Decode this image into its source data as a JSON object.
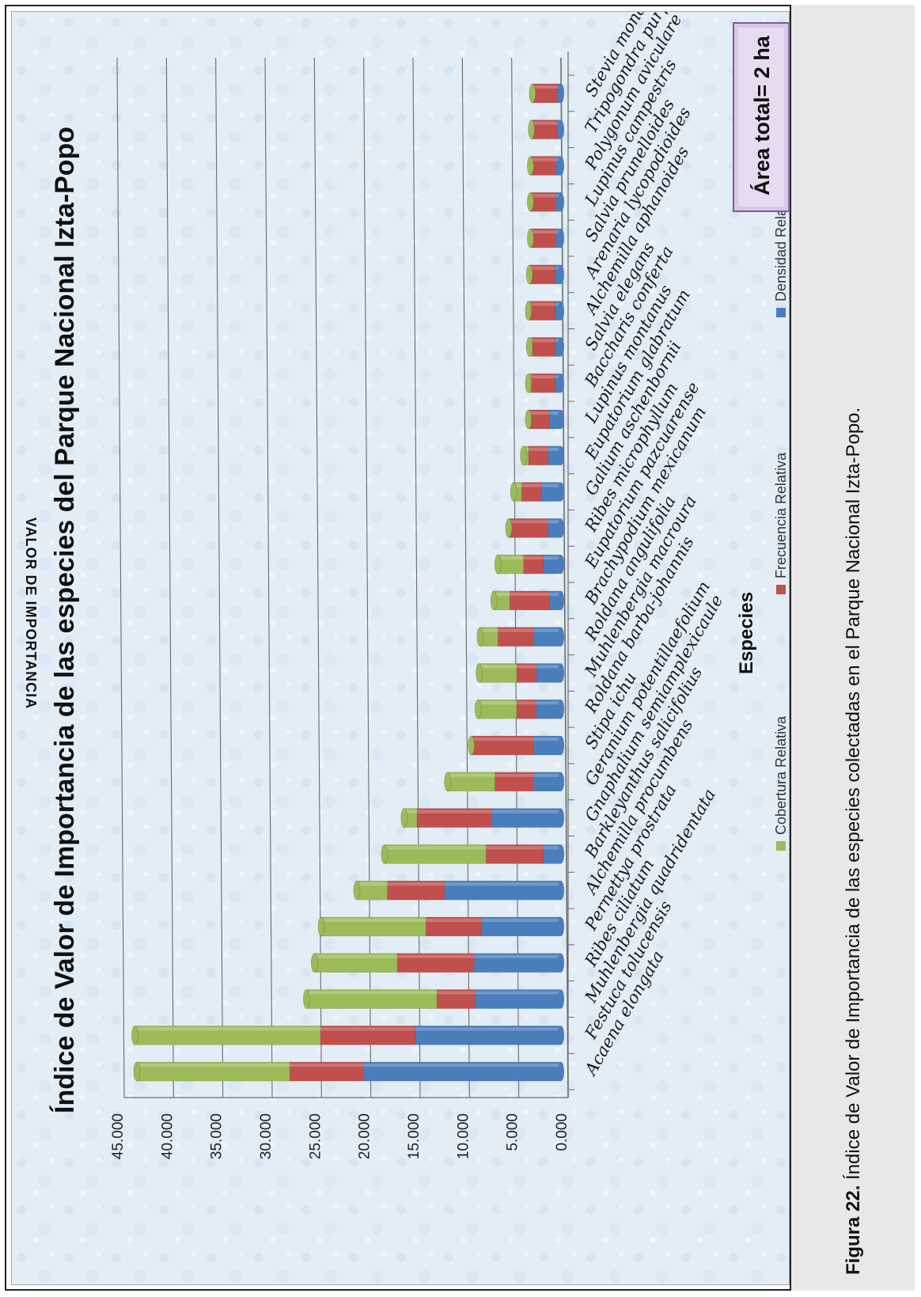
{
  "figure": {
    "caption_label": "Figura 22.",
    "caption_text": " Índice de Valor de Importancia de las especies colectadas  en el Parque Nacional Izta-Popo."
  },
  "area_box": {
    "label": "Área total= 2 ha"
  },
  "colors": {
    "densidad": "#4a7ebb",
    "frecuencia": "#c0504d",
    "cobertura": "#9bbb59",
    "background": "#e3edf6",
    "gridline": "#6b6b6b"
  },
  "chart_data": {
    "type": "bar",
    "stacked": true,
    "orientation": "vertical (page rotated 90°)",
    "title": "Índice de Valor de Importancia de las  especies del Parque Nacional Izta-Popo",
    "xlabel": "Especies",
    "ylabel": "VALOR DE  IMPORTANCIA",
    "ylim": [
      0,
      45
    ],
    "ytick_labels": [
      "0.000",
      "5.000",
      "10.000",
      "15.000",
      "20.000",
      "25.000",
      "30.000",
      "35.000",
      "40.000",
      "45.000"
    ],
    "grid": true,
    "legend_position": "bottom",
    "categories": [
      "Acaena elongata",
      "Festuca tolucensis",
      "Muhlenbergia quadridentata",
      "Ribes ciliatum",
      "Pernettya prostrata",
      "Alchemilla procumbens",
      "Barkleyanthus salicifolius",
      "Gnaphalium semiamplexicaule",
      "Geranium  potentillaefolium",
      "Stipa ichu",
      "Roldana barba-johannis",
      "Muhlenbergia macroura",
      "Roldana angulifolia",
      "Brachypodium mexicanum",
      "Eupatorium pazcuarense",
      "Ribes microphyllum",
      "Galium aschenbornii",
      "Eupatorium glabratum",
      "Lupinus montanus",
      "Baccharis conferta",
      "Salvia elegans",
      "Alchemilla aphanoides",
      "Arenaria lycopodioides",
      "Salvia prunelloides",
      "Lupinus  campestris",
      "Polygonum aviculare",
      "Tripogondra  purpurascens",
      "Stevia monardifolia"
    ],
    "series": [
      {
        "name": "Densidad Relativa",
        "values": [
          20.0,
          14.8,
          8.7,
          8.8,
          8.1,
          11.8,
          1.8,
          7.0,
          2.8,
          2.8,
          2.5,
          2.5,
          2.8,
          1.2,
          1.8,
          1.3,
          2.0,
          1.3,
          1.2,
          0.6,
          0.6,
          0.6,
          0.6,
          0.5,
          0.5,
          0.5,
          0.4,
          0.4
        ]
      },
      {
        "name": "Frecuencia Relativa",
        "values": [
          7.5,
          9.6,
          3.9,
          7.8,
          5.6,
          5.8,
          5.8,
          7.6,
          3.9,
          6.2,
          2.0,
          2.0,
          3.6,
          4.0,
          2.0,
          3.9,
          2.0,
          2.0,
          2.0,
          2.4,
          2.3,
          2.5,
          2.5,
          2.5,
          2.5,
          2.5,
          2.5,
          2.4
        ]
      },
      {
        "name": "Cobertura Relativa",
        "values": [
          15.5,
          18.8,
          13.2,
          8.4,
          10.6,
          3.1,
          10.3,
          1.3,
          4.8,
          0.1,
          3.9,
          3.8,
          1.8,
          1.6,
          2.6,
          0.1,
          0.8,
          0.5,
          0.1,
          0.3,
          0.3,
          0.2,
          0.1,
          0.1,
          0.1,
          0.1,
          0.1,
          0.1
        ]
      }
    ]
  }
}
